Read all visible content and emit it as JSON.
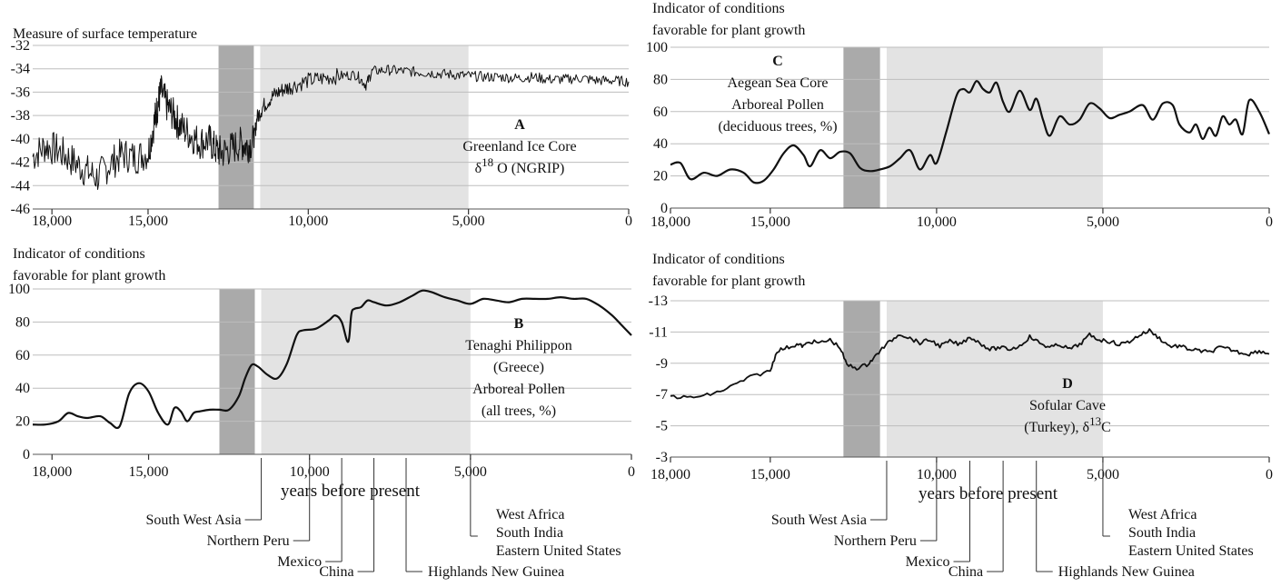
{
  "chart_data": [
    {
      "id": "A",
      "type": "line",
      "ylabel_lines": [
        "Measure of surface temperature"
      ],
      "ylim": [
        -46,
        -32
      ],
      "yticks": [
        "-32",
        "-34",
        "-36",
        "-38",
        "-40",
        "-42",
        "-44",
        "-46"
      ],
      "xlim": [
        18600,
        0
      ],
      "xticks": [
        "18,000",
        "15,000",
        "10,000",
        "5,000",
        "0"
      ],
      "xlabel": "",
      "letter": "A",
      "annotation_lines": [
        "Greenland Ice Core"
      ],
      "annotation_delta": {
        "pre": "δ",
        "sup": "18",
        "post": " O (NGRIP)"
      },
      "bands": {
        "dark": [
          12800,
          11700
        ],
        "light": [
          11500,
          5000
        ]
      },
      "noisy": true,
      "series": [
        {
          "x": [
            18600,
            18200,
            17800,
            17400,
            17000,
            16600,
            16200,
            15800,
            15400,
            15000,
            14800,
            14700,
            14600,
            14400,
            14200,
            14000,
            13700,
            13400,
            13100,
            12900,
            12700,
            12400,
            12100,
            11900,
            11700,
            11600,
            11400,
            11100,
            10800,
            10500,
            10000,
            9500,
            9000,
            8500,
            8200,
            8000,
            7500,
            7000,
            6500,
            6000,
            5500,
            5000,
            4500,
            4000,
            3500,
            3000,
            2500,
            2000,
            1500,
            1000,
            500,
            0
          ],
          "y": [
            -41.5,
            -40.6,
            -41.0,
            -41.8,
            -42.6,
            -43.3,
            -42.2,
            -41.3,
            -41.6,
            -41.2,
            -38.5,
            -37.2,
            -35.9,
            -37.2,
            -38.0,
            -38.9,
            -39.6,
            -40.3,
            -40.1,
            -40.9,
            -41.2,
            -40.8,
            -40.4,
            -40.6,
            -40.2,
            -38.2,
            -37.2,
            -36.3,
            -35.8,
            -35.5,
            -35.0,
            -34.8,
            -34.6,
            -34.5,
            -35.4,
            -34.2,
            -34.1,
            -34.2,
            -34.3,
            -34.4,
            -34.5,
            -34.6,
            -34.7,
            -34.7,
            -34.8,
            -34.7,
            -34.9,
            -34.9,
            -34.8,
            -35.0,
            -35.0,
            -35.1
          ]
        }
      ]
    },
    {
      "id": "B",
      "type": "line",
      "ylabel_lines": [
        "Indicator of conditions",
        "favorable for plant growth"
      ],
      "ylim": [
        0,
        100
      ],
      "yticks": [
        "100",
        "80",
        "60",
        "40",
        "20",
        "0"
      ],
      "xlim": [
        18600,
        0
      ],
      "xticks": [
        "18,000",
        "15,000",
        "10,000",
        "5,000",
        "0"
      ],
      "xlabel": "years before present",
      "letter": "B",
      "annotation_lines": [
        "Tenaghi Philippon",
        "(Greece)",
        "Arboreal Pollen",
        "(all trees, %)"
      ],
      "bands": {
        "dark": [
          12800,
          11700
        ],
        "light": [
          11500,
          5000
        ]
      },
      "events": [
        {
          "label": "South West Asia",
          "x": 11500,
          "side": "left",
          "depth": 0
        },
        {
          "label": "Northern Peru",
          "x": 10000,
          "side": "left",
          "depth": 1
        },
        {
          "label": "Mexico",
          "x": 9000,
          "side": "left",
          "depth": 2
        },
        {
          "label": "China",
          "x": 8000,
          "side": "left",
          "depth": 3
        },
        {
          "label": "Highlands New Guinea",
          "x": 7000,
          "side": "right",
          "depth": 3
        },
        {
          "label": "West Africa",
          "x": 5000,
          "side": "right",
          "depth": 0
        },
        {
          "label": "South India",
          "x": 5000,
          "side": "right",
          "depth": 0.5
        },
        {
          "label": "Eastern United States",
          "x": 5000,
          "side": "right",
          "depth": 1
        }
      ],
      "series": [
        {
          "x": [
            18600,
            18200,
            17800,
            17500,
            17200,
            16900,
            16500,
            16200,
            15900,
            15600,
            15300,
            15000,
            14700,
            14400,
            14200,
            14000,
            13800,
            13600,
            13400,
            13100,
            12800,
            12500,
            12200,
            12000,
            11800,
            11600,
            11300,
            11000,
            10700,
            10400,
            10200,
            9800,
            9400,
            9200,
            9000,
            8800,
            8700,
            8600,
            8400,
            8200,
            8000,
            7600,
            7200,
            6800,
            6500,
            6200,
            5800,
            5400,
            5000,
            4600,
            4200,
            3800,
            3400,
            3000,
            2600,
            2200,
            1800,
            1400,
            1000,
            600,
            300,
            0
          ],
          "y": [
            18,
            18,
            20,
            25,
            23,
            22,
            23,
            19,
            17,
            37,
            43,
            38,
            25,
            18,
            28,
            26,
            20,
            25,
            26,
            27,
            27,
            27,
            35,
            46,
            54,
            53,
            48,
            46,
            55,
            72,
            75,
            76,
            81,
            84,
            80,
            68,
            85,
            88,
            89,
            93,
            92,
            90,
            92,
            96,
            99,
            98,
            95,
            93,
            91,
            94,
            93,
            92,
            94,
            94,
            94,
            95,
            94,
            94,
            90,
            84,
            78,
            72
          ]
        }
      ]
    },
    {
      "id": "C",
      "type": "line",
      "ylabel_lines": [
        "Indicator of conditions",
        "favorable for plant growth"
      ],
      "ylim": [
        0,
        100
      ],
      "yticks": [
        "100",
        "80",
        "60",
        "40",
        "20",
        "0"
      ],
      "xlim": [
        18000,
        0
      ],
      "xticks": [
        "18,000",
        "15,000",
        "10,000",
        "5,000",
        "0"
      ],
      "xlabel": "",
      "letter": "C",
      "annotation_lines": [
        "Aegean Sea Core",
        "Arboreal Pollen",
        "(deciduous trees, %)"
      ],
      "bands": {
        "dark": [
          12800,
          11700
        ],
        "light": [
          11500,
          5000
        ]
      },
      "series": [
        {
          "x": [
            18000,
            17700,
            17400,
            17000,
            16600,
            16200,
            15800,
            15500,
            15200,
            14900,
            14600,
            14300,
            14000,
            13800,
            13500,
            13200,
            12900,
            12600,
            12300,
            12000,
            11700,
            11400,
            11100,
            10800,
            10500,
            10200,
            10000,
            9700,
            9400,
            9200,
            9000,
            8800,
            8600,
            8400,
            8200,
            8000,
            7800,
            7500,
            7200,
            7000,
            6800,
            6600,
            6300,
            6000,
            5700,
            5400,
            5100,
            4800,
            4500,
            4200,
            3800,
            3500,
            3200,
            2900,
            2700,
            2400,
            2200,
            2000,
            1800,
            1600,
            1400,
            1200,
            1000,
            800,
            600,
            300,
            0
          ],
          "y": [
            27,
            28,
            18,
            22,
            20,
            24,
            22,
            16,
            17,
            24,
            34,
            39,
            33,
            26,
            36,
            31,
            35,
            34,
            25,
            23,
            24,
            26,
            31,
            36,
            24,
            33,
            28,
            48,
            70,
            74,
            72,
            79,
            74,
            72,
            78,
            66,
            60,
            73,
            61,
            68,
            55,
            45,
            57,
            52,
            55,
            65,
            62,
            56,
            58,
            60,
            64,
            55,
            65,
            64,
            52,
            47,
            52,
            43,
            50,
            45,
            57,
            52,
            55,
            46,
            67,
            60,
            46
          ]
        }
      ]
    },
    {
      "id": "D",
      "type": "line",
      "ylabel_lines": [
        "Indicator of conditions",
        "favorable for plant growth"
      ],
      "ylim": [
        -3,
        -13
      ],
      "yticks": [
        "-13",
        "-11",
        "-9",
        "-7",
        "-5",
        "-3"
      ],
      "xlim": [
        18000,
        0
      ],
      "xticks": [
        "18,000",
        "15,000",
        "10,000",
        "5,000",
        "0"
      ],
      "xlabel": "years before present",
      "letter": "D",
      "annotation_lines": [
        "Sofular Cave"
      ],
      "annotation_delta": {
        "pre": "(Turkey), δ",
        "sup": "13",
        "post": "C"
      },
      "bands": {
        "dark": [
          12800,
          11700
        ],
        "light": [
          11500,
          5000
        ]
      },
      "noisy_small": true,
      "events": [
        {
          "label": "South West Asia",
          "x": 11500,
          "side": "left",
          "depth": 0
        },
        {
          "label": "Northern Peru",
          "x": 10000,
          "side": "left",
          "depth": 1
        },
        {
          "label": "Mexico",
          "x": 9000,
          "side": "left",
          "depth": 2
        },
        {
          "label": "China",
          "x": 8000,
          "side": "left",
          "depth": 3
        },
        {
          "label": "Highlands New Guinea",
          "x": 7000,
          "side": "right",
          "depth": 3
        },
        {
          "label": "West Africa",
          "x": 5000,
          "side": "right",
          "depth": 0
        },
        {
          "label": "South India",
          "x": 5000,
          "side": "right",
          "depth": 0.5
        },
        {
          "label": "Eastern United States",
          "x": 5000,
          "side": "right",
          "depth": 1
        }
      ],
      "series": [
        {
          "x": [
            18000,
            17500,
            17000,
            16500,
            16000,
            15500,
            15000,
            14800,
            14500,
            14200,
            14000,
            13800,
            13500,
            13200,
            12900,
            12700,
            12400,
            12100,
            11900,
            11700,
            11400,
            11100,
            10800,
            10500,
            10200,
            9900,
            9600,
            9300,
            9000,
            8700,
            8400,
            8100,
            7800,
            7500,
            7200,
            6900,
            6600,
            6300,
            6000,
            5700,
            5400,
            5100,
            4800,
            4500,
            4200,
            3900,
            3600,
            3300,
            3000,
            2700,
            2400,
            2100,
            1800,
            1500,
            1200,
            900,
            600,
            300,
            0
          ],
          "y": [
            -6.9,
            -6.8,
            -6.9,
            -7.2,
            -7.7,
            -8.2,
            -8.5,
            -9.8,
            -10.0,
            -10.2,
            -10.1,
            -10.4,
            -10.3,
            -10.5,
            -10.0,
            -8.9,
            -8.7,
            -8.9,
            -9.3,
            -9.8,
            -10.4,
            -10.9,
            -10.6,
            -10.3,
            -10.5,
            -10.1,
            -10.4,
            -10.2,
            -10.7,
            -10.3,
            -9.9,
            -10.0,
            -9.9,
            -10.1,
            -10.7,
            -10.3,
            -10.0,
            -10.2,
            -9.9,
            -10.2,
            -10.8,
            -10.5,
            -10.4,
            -10.2,
            -10.4,
            -10.8,
            -11.1,
            -10.6,
            -10.1,
            -10.1,
            -9.9,
            -9.8,
            -9.7,
            -10.0,
            -9.9,
            -9.7,
            -9.6,
            -9.8,
            -9.6
          ]
        }
      ]
    }
  ]
}
